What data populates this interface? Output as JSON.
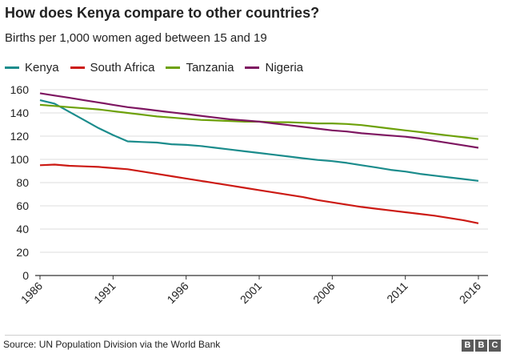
{
  "header": {
    "title": "How does Kenya compare to other countries?",
    "subtitle": "Births per 1,000 women aged between 15 and 19"
  },
  "footer": {
    "source": "Source: UN Population Division via the World Bank",
    "logo_letters": [
      "B",
      "B",
      "C"
    ]
  },
  "chart_data": {
    "type": "line",
    "title": "How does Kenya compare to other countries?",
    "subtitle": "Births per 1,000 women aged between 15 and 19",
    "xlabel": "",
    "ylabel": "",
    "x": [
      1986,
      1987,
      1988,
      1989,
      1990,
      1991,
      1992,
      1993,
      1994,
      1995,
      1996,
      1997,
      1998,
      1999,
      2000,
      2001,
      2002,
      2003,
      2004,
      2005,
      2006,
      2007,
      2008,
      2009,
      2010,
      2011,
      2012,
      2013,
      2014,
      2015,
      2016
    ],
    "xlim": [
      1986,
      2016
    ],
    "ylim": [
      0,
      160
    ],
    "x_ticks": [
      "1986",
      "1991",
      "1996",
      "2001",
      "2006",
      "2011",
      "2016"
    ],
    "y_ticks": [
      "0",
      "20",
      "40",
      "60",
      "80",
      "100",
      "120",
      "140",
      "160"
    ],
    "grid": "horizontal",
    "legend_placement": "top-left",
    "series": [
      {
        "name": "Kenya",
        "color": "#1b8c8c",
        "values": [
          151,
          148,
          141,
          134,
          127,
          121,
          115.5,
          115,
          114.5,
          113,
          112.5,
          111.5,
          110,
          108.5,
          107,
          105.5,
          104,
          102.5,
          101,
          99.5,
          98.5,
          97,
          95,
          93,
          91,
          89.5,
          87.5,
          86,
          84.5,
          83,
          81.5
        ]
      },
      {
        "name": "South Africa",
        "color": "#cc1a14",
        "values": [
          95,
          95.5,
          94.5,
          94,
          93.5,
          92.5,
          91.5,
          89.5,
          87.5,
          85.5,
          83.5,
          81.5,
          79.5,
          77.5,
          75.5,
          73.5,
          71.5,
          69.5,
          67.5,
          65,
          63,
          61,
          59,
          57.5,
          56,
          54.5,
          53,
          51.5,
          49.5,
          47.5,
          45
        ]
      },
      {
        "name": "Tanzania",
        "color": "#6da10a",
        "values": [
          147,
          146,
          145,
          144,
          143,
          141.5,
          140,
          138.5,
          137,
          136,
          135,
          134,
          133.5,
          133,
          132.5,
          132.5,
          132,
          132,
          131.5,
          131,
          131,
          130.5,
          129.5,
          128,
          126.5,
          125,
          123.5,
          122,
          120.5,
          119,
          117.5
        ]
      },
      {
        "name": "Nigeria",
        "color": "#7e1661",
        "values": [
          157,
          155,
          153,
          151,
          149,
          147,
          145,
          143.5,
          142,
          140.5,
          139,
          137.5,
          136,
          134.5,
          133.5,
          132.5,
          131,
          129.5,
          128,
          126.5,
          125,
          124,
          122.5,
          121.5,
          120.5,
          119.5,
          118,
          116,
          114,
          112,
          110
        ]
      }
    ]
  }
}
